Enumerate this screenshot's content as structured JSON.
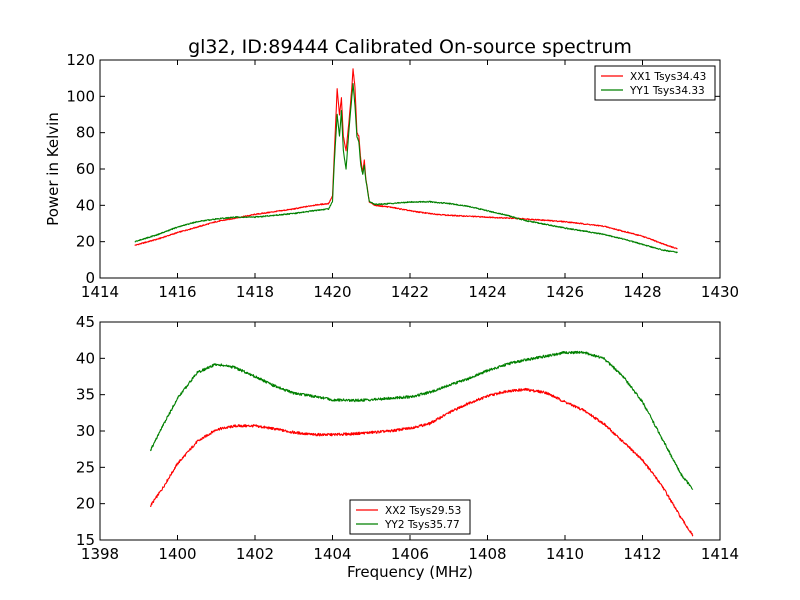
{
  "figure": {
    "title": "gl32, ID:89444 Calibrated On-source spectrum",
    "xlabel": "Frequency (MHz)"
  },
  "chart_data": [
    {
      "type": "line",
      "title": "gl32, ID:89444 Calibrated On-source spectrum",
      "xlabel": "",
      "ylabel": "Power in Kelvin",
      "xlim": [
        1414,
        1430
      ],
      "ylim": [
        0,
        120
      ],
      "xticks": [
        1414,
        1416,
        1418,
        1420,
        1422,
        1424,
        1426,
        1428,
        1430
      ],
      "yticks": [
        0,
        20,
        40,
        60,
        80,
        100,
        120
      ],
      "legend": "top-right",
      "series": [
        {
          "name": "XX1 Tsys34.43",
          "color": "#ff0000",
          "points": [
            [
              1414.9,
              18
            ],
            [
              1415.5,
              21.5
            ],
            [
              1416,
              25
            ],
            [
              1416.5,
              28
            ],
            [
              1417,
              31
            ],
            [
              1417.5,
              33
            ],
            [
              1418,
              35
            ],
            [
              1418.5,
              36.5
            ],
            [
              1419,
              38
            ],
            [
              1419.5,
              40
            ],
            [
              1419.9,
              41
            ],
            [
              1420.0,
              45
            ],
            [
              1420.05,
              70
            ],
            [
              1420.12,
              104
            ],
            [
              1420.18,
              90
            ],
            [
              1420.23,
              99
            ],
            [
              1420.28,
              78
            ],
            [
              1420.35,
              70
            ],
            [
              1420.42,
              85
            ],
            [
              1420.5,
              105
            ],
            [
              1420.53,
              115
            ],
            [
              1420.58,
              105
            ],
            [
              1420.63,
              80
            ],
            [
              1420.68,
              78
            ],
            [
              1420.73,
              65
            ],
            [
              1420.78,
              58
            ],
            [
              1420.82,
              65
            ],
            [
              1420.86,
              55
            ],
            [
              1420.95,
              42
            ],
            [
              1421.1,
              40
            ],
            [
              1421.5,
              39
            ],
            [
              1422,
              37
            ],
            [
              1422.5,
              35.5
            ],
            [
              1423,
              34.5
            ],
            [
              1424,
              33.5
            ],
            [
              1425,
              32.5
            ],
            [
              1426,
              31
            ],
            [
              1427,
              28.5
            ],
            [
              1428,
              23
            ],
            [
              1428.5,
              19
            ],
            [
              1428.9,
              16
            ]
          ]
        },
        {
          "name": "YY1 Tsys34.33",
          "color": "#008000",
          "points": [
            [
              1414.9,
              20
            ],
            [
              1415.5,
              24
            ],
            [
              1416,
              28
            ],
            [
              1416.5,
              31
            ],
            [
              1417,
              32.5
            ],
            [
              1417.5,
              33.5
            ],
            [
              1418,
              33.5
            ],
            [
              1418.5,
              34.5
            ],
            [
              1419,
              35.5
            ],
            [
              1419.5,
              37
            ],
            [
              1419.9,
              38
            ],
            [
              1420.0,
              42
            ],
            [
              1420.05,
              65
            ],
            [
              1420.12,
              90
            ],
            [
              1420.18,
              78
            ],
            [
              1420.23,
              92
            ],
            [
              1420.28,
              70
            ],
            [
              1420.35,
              60
            ],
            [
              1420.42,
              80
            ],
            [
              1420.5,
              100
            ],
            [
              1420.53,
              107
            ],
            [
              1420.58,
              95
            ],
            [
              1420.63,
              78
            ],
            [
              1420.68,
              75
            ],
            [
              1420.73,
              62
            ],
            [
              1420.78,
              57
            ],
            [
              1420.82,
              62
            ],
            [
              1420.86,
              54
            ],
            [
              1420.95,
              42
            ],
            [
              1421.1,
              40.5
            ],
            [
              1421.5,
              41
            ],
            [
              1422,
              41.8
            ],
            [
              1422.5,
              42
            ],
            [
              1423,
              41
            ],
            [
              1423.5,
              39.5
            ],
            [
              1424,
              37
            ],
            [
              1424.5,
              34.5
            ],
            [
              1425,
              31.5
            ],
            [
              1425.5,
              29.5
            ],
            [
              1426,
              27.5
            ],
            [
              1426.5,
              25.8
            ],
            [
              1427,
              24
            ],
            [
              1427.5,
              21.5
            ],
            [
              1428,
              18.5
            ],
            [
              1428.5,
              15.5
            ],
            [
              1428.9,
              14
            ]
          ]
        }
      ]
    },
    {
      "type": "line",
      "title": "",
      "xlabel": "Frequency (MHz)",
      "ylabel": "",
      "xlim": [
        1398,
        1414
      ],
      "ylim": [
        15,
        45
      ],
      "xticks": [
        1398,
        1400,
        1402,
        1404,
        1406,
        1408,
        1410,
        1412,
        1414
      ],
      "yticks": [
        15,
        20,
        25,
        30,
        35,
        40,
        45
      ],
      "legend": "bottom-center",
      "series": [
        {
          "name": "XX2 Tsys29.53",
          "color": "#ff0000",
          "points": [
            [
              1399.3,
              19.7
            ],
            [
              1399.6,
              22
            ],
            [
              1400,
              25.5
            ],
            [
              1400.5,
              28.5
            ],
            [
              1401,
              30.2
            ],
            [
              1401.5,
              30.7
            ],
            [
              1402,
              30.7
            ],
            [
              1402.5,
              30.3
            ],
            [
              1403,
              29.8
            ],
            [
              1403.5,
              29.5
            ],
            [
              1404,
              29.5
            ],
            [
              1404.5,
              29.6
            ],
            [
              1405,
              29.8
            ],
            [
              1405.5,
              30
            ],
            [
              1406,
              30.4
            ],
            [
              1406.5,
              31
            ],
            [
              1407,
              32.5
            ],
            [
              1407.5,
              33.8
            ],
            [
              1408,
              34.8
            ],
            [
              1408.5,
              35.5
            ],
            [
              1409,
              35.7
            ],
            [
              1409.5,
              35.3
            ],
            [
              1410,
              34
            ],
            [
              1410.5,
              32.8
            ],
            [
              1411,
              31
            ],
            [
              1411.5,
              28.5
            ],
            [
              1412,
              26
            ],
            [
              1412.5,
              22.5
            ],
            [
              1413,
              18
            ],
            [
              1413.3,
              15.6
            ]
          ]
        },
        {
          "name": "YY2 Tsys35.77",
          "color": "#008000",
          "points": [
            [
              1399.3,
              27.3
            ],
            [
              1399.6,
              30.5
            ],
            [
              1400,
              34.5
            ],
            [
              1400.5,
              38
            ],
            [
              1401,
              39.2
            ],
            [
              1401.5,
              38.7
            ],
            [
              1402,
              37.5
            ],
            [
              1402.5,
              36.2
            ],
            [
              1403,
              35.2
            ],
            [
              1403.5,
              34.8
            ],
            [
              1404,
              34.3
            ],
            [
              1404.5,
              34.2
            ],
            [
              1405,
              34.3
            ],
            [
              1405.5,
              34.5
            ],
            [
              1406,
              34.7
            ],
            [
              1406.5,
              35.3
            ],
            [
              1407,
              36.3
            ],
            [
              1407.5,
              37.2
            ],
            [
              1408,
              38.3
            ],
            [
              1408.5,
              39.2
            ],
            [
              1409,
              39.8
            ],
            [
              1409.5,
              40.3
            ],
            [
              1410,
              40.8
            ],
            [
              1410.5,
              40.8
            ],
            [
              1411,
              40
            ],
            [
              1411.5,
              37.5
            ],
            [
              1412,
              34
            ],
            [
              1412.5,
              29
            ],
            [
              1413,
              24
            ],
            [
              1413.3,
              22
            ]
          ]
        }
      ]
    }
  ]
}
